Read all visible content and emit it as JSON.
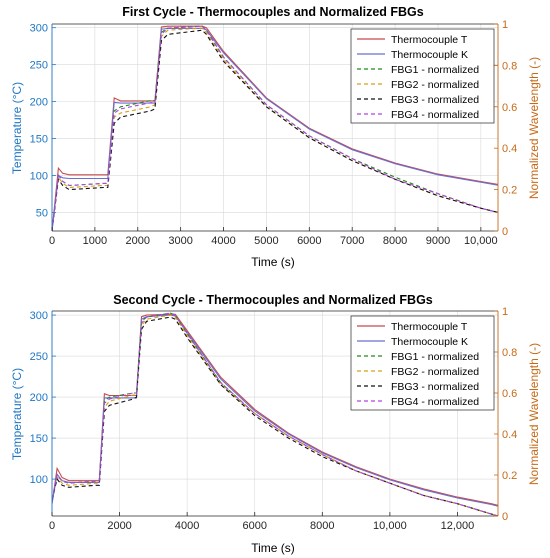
{
  "colors": {
    "thermo_t": "#c84a4a",
    "thermo_k": "#6a6fd0",
    "fbg1": "#1e8a1e",
    "fbg2": "#d4a017",
    "fbg3": "#111111",
    "fbg4": "#b044e0",
    "left_axis": "#1f77c4",
    "right_axis": "#c66a18",
    "grid": "#d9d9d9"
  },
  "chart_data": [
    {
      "type": "line",
      "title": "First Cycle - Thermocouples and Normalized FBGs",
      "xlabel": "Time (s)",
      "ylabel_left": "Temperature (°C)",
      "ylabel_right": "Normalized Wavelength (-)",
      "xlim": [
        0,
        10400
      ],
      "ylim_left": [
        25,
        305
      ],
      "ylim_right": [
        0,
        1
      ],
      "x_ticks": [
        "0",
        "1000",
        "2000",
        "3000",
        "4000",
        "5000",
        "6000",
        "7000",
        "8000",
        "9000",
        "10,000"
      ],
      "y_left_ticks": [
        "50",
        "100",
        "150",
        "200",
        "250",
        "300"
      ],
      "y_right_ticks": [
        "0",
        "0.2",
        "0.4",
        "0.6",
        "0.8",
        "1"
      ],
      "grid": true,
      "legend_position": "top-right",
      "series": [
        {
          "name": "Thermocouple T",
          "axis": "left",
          "style": "solid",
          "x": [
            0,
            150,
            250,
            400,
            1200,
            1300,
            1450,
            1600,
            2300,
            2400,
            2550,
            2700,
            3500,
            3600,
            4000,
            5000,
            6000,
            7000,
            8000,
            9000,
            10000,
            10400
          ],
          "y": [
            25,
            110,
            103,
            101,
            101,
            101,
            205,
            201,
            201,
            201,
            301,
            302,
            302,
            300,
            268,
            205,
            164,
            136,
            117,
            102,
            92,
            88
          ]
        },
        {
          "name": "Thermocouple K",
          "axis": "left",
          "style": "solid",
          "x": [
            0,
            150,
            250,
            400,
            1200,
            1300,
            1450,
            1600,
            2300,
            2400,
            2550,
            2700,
            3500,
            3600,
            4000,
            5000,
            6000,
            7000,
            8000,
            9000,
            10000,
            10400
          ],
          "y": [
            25,
            100,
            97,
            96,
            96,
            96,
            199,
            198,
            198,
            198,
            298,
            299,
            299,
            297,
            266,
            204,
            163,
            135,
            116,
            101,
            91,
            87
          ]
        },
        {
          "name": "FBG1 - normalized",
          "axis": "right",
          "style": "dashed",
          "x": [
            0,
            150,
            250,
            400,
            1200,
            1300,
            1450,
            1600,
            2300,
            2400,
            2550,
            2700,
            3500,
            3600,
            4000,
            5000,
            6000,
            7000,
            8000,
            9000,
            10000,
            10400
          ],
          "y": [
            0.0,
            0.27,
            0.24,
            0.22,
            0.23,
            0.23,
            0.58,
            0.6,
            0.63,
            0.63,
            0.96,
            0.98,
            0.99,
            0.97,
            0.84,
            0.61,
            0.46,
            0.35,
            0.26,
            0.18,
            0.11,
            0.09
          ]
        },
        {
          "name": "FBG2 - normalized",
          "axis": "right",
          "style": "dashed",
          "x": [
            0,
            150,
            250,
            400,
            1200,
            1300,
            1450,
            1600,
            2300,
            2400,
            2550,
            2700,
            3500,
            3600,
            4000,
            5000,
            6000,
            7000,
            8000,
            9000,
            10000,
            10400
          ],
          "y": [
            0.0,
            0.26,
            0.23,
            0.21,
            0.22,
            0.22,
            0.55,
            0.57,
            0.6,
            0.61,
            0.94,
            0.97,
            0.98,
            0.96,
            0.83,
            0.6,
            0.45,
            0.34,
            0.25,
            0.17,
            0.11,
            0.09
          ]
        },
        {
          "name": "FBG3 - normalized",
          "axis": "right",
          "style": "dashed",
          "x": [
            0,
            150,
            250,
            400,
            1200,
            1300,
            1450,
            1600,
            2300,
            2400,
            2550,
            2700,
            3500,
            3600,
            4000,
            5000,
            6000,
            7000,
            8000,
            9000,
            10000,
            10400
          ],
          "y": [
            0.0,
            0.25,
            0.22,
            0.2,
            0.21,
            0.21,
            0.52,
            0.55,
            0.58,
            0.59,
            0.92,
            0.95,
            0.97,
            0.95,
            0.82,
            0.6,
            0.45,
            0.34,
            0.25,
            0.17,
            0.11,
            0.09
          ]
        },
        {
          "name": "FBG4 - normalized",
          "axis": "right",
          "style": "dashed",
          "x": [
            0,
            150,
            250,
            400,
            1200,
            1300,
            1450,
            1600,
            2300,
            2400,
            2550,
            2700,
            3500,
            3600,
            4000,
            5000,
            6000,
            7000,
            8000,
            9000,
            10000,
            10400
          ],
          "y": [
            0.0,
            0.27,
            0.24,
            0.22,
            0.23,
            0.23,
            0.57,
            0.59,
            0.62,
            0.62,
            0.95,
            0.98,
            0.99,
            0.97,
            0.84,
            0.61,
            0.46,
            0.35,
            0.25,
            0.18,
            0.11,
            0.09
          ]
        }
      ]
    },
    {
      "type": "line",
      "title": "Second Cycle - Thermocouples and Normalized FBGs",
      "xlabel": "Time (s)",
      "ylabel_left": "Temperature (°C)",
      "ylabel_right": "Normalized Wavelength (-)",
      "xlim": [
        0,
        13200
      ],
      "ylim_left": [
        55,
        305
      ],
      "ylim_right": [
        0,
        1
      ],
      "x_ticks": [
        "0",
        "2000",
        "4000",
        "6000",
        "8000",
        "10,000",
        "12,000"
      ],
      "y_left_ticks": [
        "100",
        "150",
        "200",
        "250",
        "300"
      ],
      "y_right_ticks": [
        "0",
        "0.2",
        "0.4",
        "0.6",
        "0.8",
        "1"
      ],
      "grid": true,
      "legend_position": "top-right",
      "series": [
        {
          "name": "Thermocouple T",
          "axis": "left",
          "style": "solid",
          "x": [
            0,
            150,
            300,
            500,
            1300,
            1400,
            1550,
            1700,
            2400,
            2500,
            2650,
            2800,
            3500,
            3650,
            4000,
            5000,
            6000,
            7000,
            8000,
            9000,
            10000,
            11000,
            12000,
            13000,
            13200
          ],
          "y": [
            70,
            113,
            102,
            98,
            98,
            98,
            204,
            202,
            202,
            202,
            298,
            300,
            301,
            301,
            281,
            224,
            185,
            156,
            133,
            115,
            100,
            88,
            78,
            70,
            68
          ]
        },
        {
          "name": "Thermocouple K",
          "axis": "left",
          "style": "solid",
          "x": [
            0,
            150,
            300,
            500,
            1300,
            1400,
            1550,
            1700,
            2400,
            2500,
            2650,
            2800,
            3500,
            3650,
            4000,
            5000,
            6000,
            7000,
            8000,
            9000,
            10000,
            11000,
            12000,
            13000,
            13200
          ],
          "y": [
            70,
            106,
            98,
            96,
            96,
            96,
            199,
            199,
            199,
            199,
            295,
            298,
            300,
            299,
            279,
            222,
            183,
            155,
            132,
            114,
            99,
            87,
            77,
            69,
            67
          ]
        },
        {
          "name": "FBG1 - normalized",
          "axis": "right",
          "style": "dashed",
          "x": [
            0,
            150,
            300,
            500,
            1300,
            1400,
            1550,
            1700,
            2400,
            2500,
            2650,
            2800,
            3500,
            3650,
            4000,
            5000,
            6000,
            7000,
            8000,
            9000,
            10000,
            11000,
            12000,
            13000,
            13200
          ],
          "y": [
            0.08,
            0.2,
            0.17,
            0.16,
            0.17,
            0.17,
            0.56,
            0.58,
            0.6,
            0.6,
            0.95,
            0.97,
            0.99,
            0.98,
            0.89,
            0.65,
            0.5,
            0.39,
            0.3,
            0.22,
            0.16,
            0.1,
            0.06,
            0.01,
            0.0
          ]
        },
        {
          "name": "FBG2 - normalized",
          "axis": "right",
          "style": "dashed",
          "x": [
            0,
            150,
            300,
            500,
            1300,
            1400,
            1550,
            1700,
            2400,
            2500,
            2650,
            2800,
            3500,
            3650,
            4000,
            5000,
            6000,
            7000,
            8000,
            9000,
            10000,
            11000,
            12000,
            13000,
            13200
          ],
          "y": [
            0.08,
            0.19,
            0.16,
            0.15,
            0.16,
            0.16,
            0.53,
            0.56,
            0.59,
            0.59,
            0.93,
            0.96,
            0.98,
            0.97,
            0.88,
            0.64,
            0.5,
            0.39,
            0.3,
            0.22,
            0.16,
            0.1,
            0.06,
            0.01,
            0.0
          ]
        },
        {
          "name": "FBG3 - normalized",
          "axis": "right",
          "style": "dashed",
          "x": [
            0,
            150,
            300,
            500,
            1300,
            1400,
            1550,
            1700,
            2400,
            2500,
            2650,
            2800,
            3500,
            3650,
            4000,
            5000,
            6000,
            7000,
            8000,
            9000,
            10000,
            11000,
            12000,
            13000,
            13200
          ],
          "y": [
            0.08,
            0.18,
            0.15,
            0.14,
            0.15,
            0.15,
            0.51,
            0.54,
            0.57,
            0.58,
            0.91,
            0.95,
            0.97,
            0.96,
            0.87,
            0.64,
            0.49,
            0.38,
            0.29,
            0.22,
            0.16,
            0.1,
            0.06,
            0.01,
            0.0
          ]
        },
        {
          "name": "FBG4 - normalized",
          "axis": "right",
          "style": "dashed",
          "x": [
            0,
            150,
            300,
            500,
            1300,
            1400,
            1550,
            1700,
            2400,
            2500,
            2650,
            2800,
            3500,
            3650,
            4000,
            5000,
            6000,
            7000,
            8000,
            9000,
            10000,
            11000,
            12000,
            13000,
            13200
          ],
          "y": [
            0.08,
            0.2,
            0.17,
            0.16,
            0.17,
            0.17,
            0.55,
            0.57,
            0.6,
            0.6,
            0.94,
            0.97,
            0.99,
            0.98,
            0.89,
            0.65,
            0.5,
            0.39,
            0.3,
            0.22,
            0.16,
            0.1,
            0.06,
            0.01,
            0.0
          ]
        }
      ]
    }
  ]
}
